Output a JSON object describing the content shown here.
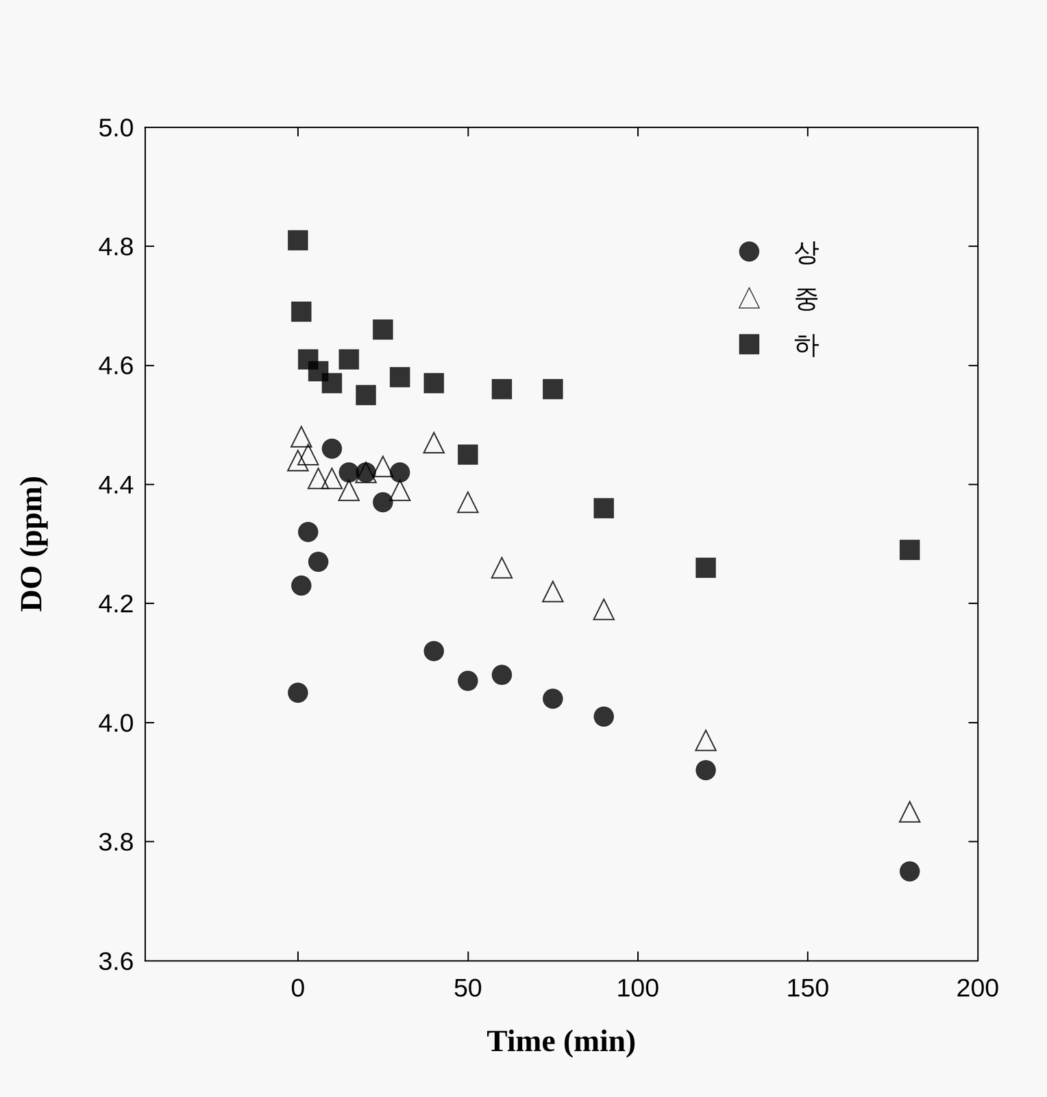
{
  "chart_data": {
    "type": "scatter",
    "xlabel": "Time (min)",
    "ylabel": "DO (ppm)",
    "x": [
      0,
      1,
      3,
      6,
      10,
      15,
      20,
      25,
      30,
      40,
      50,
      60,
      75,
      90,
      120,
      180
    ],
    "series": [
      {
        "name": "상",
        "color": "#000000",
        "marker": "circle",
        "values": [
          4.05,
          4.23,
          4.32,
          4.27,
          4.46,
          4.42,
          4.42,
          4.37,
          4.42,
          4.12,
          4.07,
          4.08,
          4.04,
          4.01,
          3.92,
          3.75
        ]
      },
      {
        "name": "중",
        "color": "#000000",
        "marker": "triangle-open",
        "values": [
          4.44,
          4.48,
          4.45,
          4.41,
          4.41,
          4.39,
          4.42,
          4.43,
          4.39,
          4.47,
          4.37,
          4.26,
          4.22,
          4.19,
          3.97,
          3.85
        ]
      },
      {
        "name": "하",
        "color": "#000000",
        "marker": "square",
        "values": [
          4.81,
          4.69,
          4.61,
          4.59,
          4.57,
          4.61,
          4.55,
          4.66,
          4.58,
          4.57,
          4.45,
          4.56,
          4.56,
          4.36,
          4.26,
          4.29
        ]
      }
    ],
    "xlim": [
      -45,
      200
    ],
    "xticks": [
      0,
      50,
      100,
      150,
      200
    ],
    "ylim": [
      3.6,
      5.0
    ],
    "yticks": [
      3.6,
      3.8,
      {
        "value": 4.0,
        "label": "4.0"
      },
      4.2,
      4.4,
      4.6,
      4.8,
      {
        "value": 5.0,
        "label": "5.0"
      }
    ],
    "grid": false,
    "legend": "upper right"
  }
}
